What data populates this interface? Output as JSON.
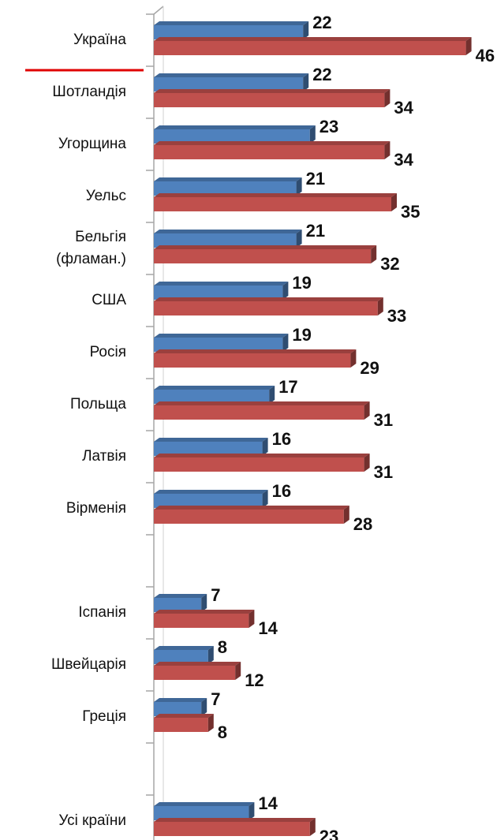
{
  "chart_data": {
    "type": "bar",
    "orientation": "horizontal",
    "categories": [
      "Україна",
      "Шотландія",
      "Угорщина",
      "Уельс",
      "Бельгія (фламан.)",
      "США",
      "Росія",
      "Польща",
      "Латвія",
      "Вірменія",
      null,
      "Іспанія",
      "Швейцарія",
      "Греція",
      null,
      "Усі країни"
    ],
    "series": [
      {
        "color": "#4f81bd",
        "values": [
          22,
          22,
          23,
          21,
          21,
          19,
          19,
          17,
          16,
          16,
          null,
          7,
          8,
          7,
          null,
          14
        ]
      },
      {
        "color": "#c0504d",
        "values": [
          46,
          34,
          34,
          35,
          32,
          33,
          29,
          31,
          31,
          28,
          null,
          14,
          12,
          8,
          null,
          23
        ]
      }
    ],
    "xlim": [
      0,
      50
    ]
  }
}
